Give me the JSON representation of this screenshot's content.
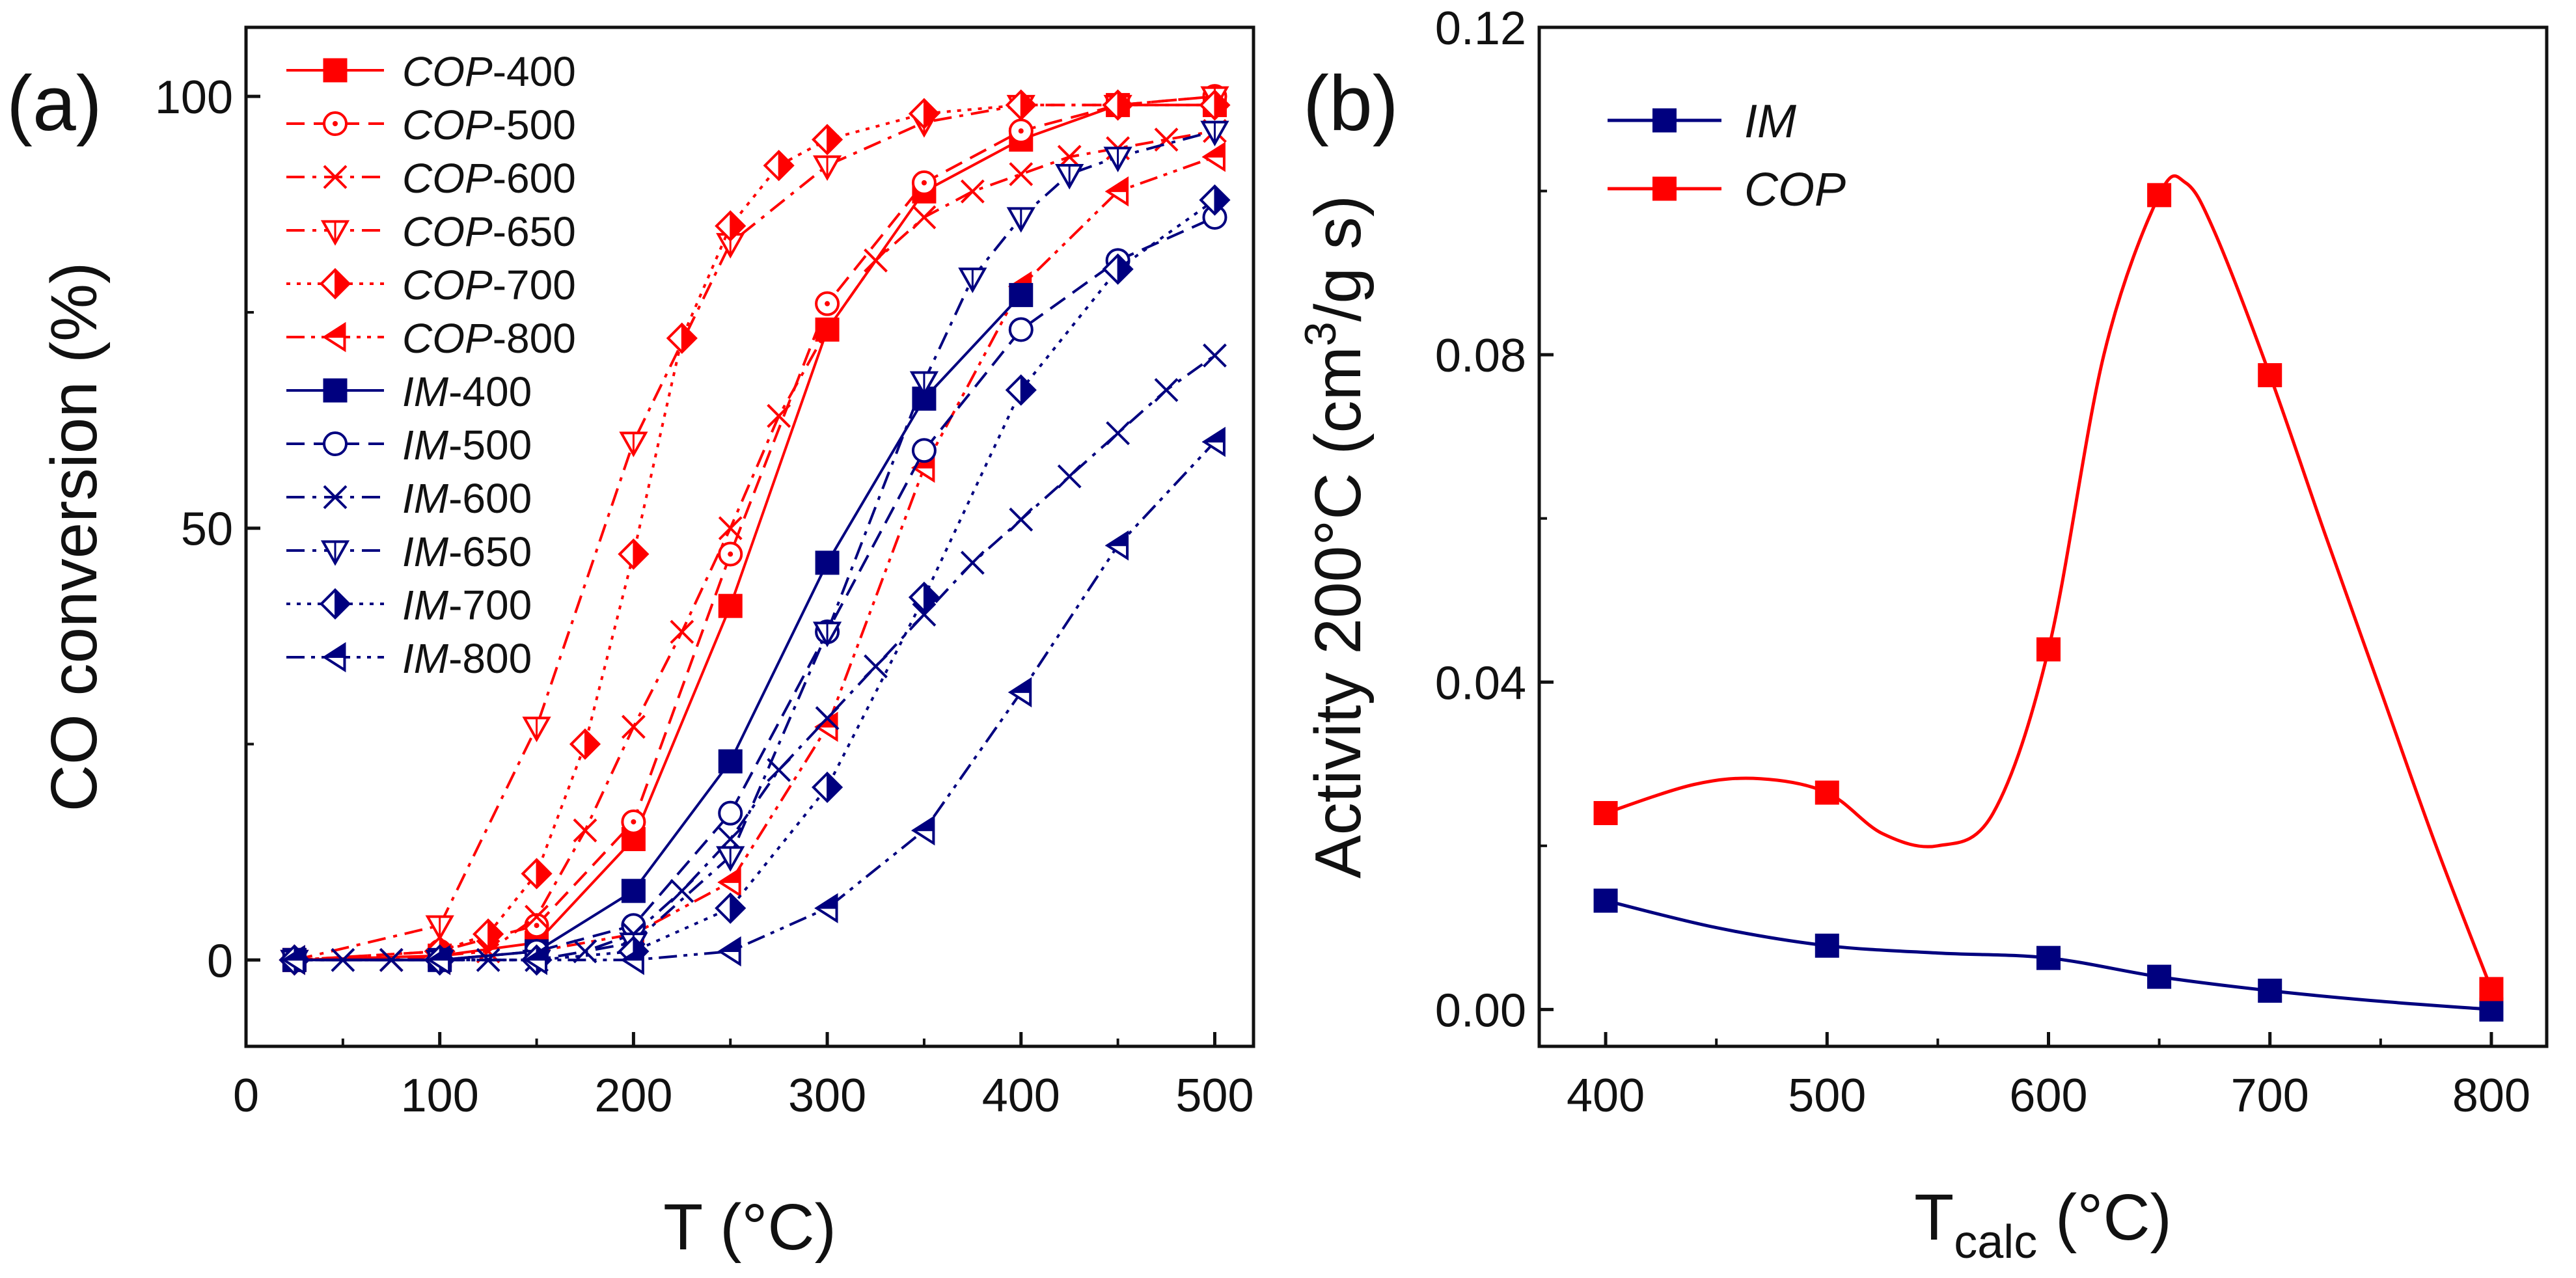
{
  "chart_data": [
    {
      "panel_label": "(a)",
      "type": "line",
      "xlabel": "T (°C)",
      "ylabel": "CO conversion (%)",
      "xlim": [
        0,
        520
      ],
      "ylim": [
        -10,
        108
      ],
      "xticks": [
        "0",
        "100",
        "200",
        "300",
        "400",
        "500"
      ],
      "yticks": [
        "0",
        "50",
        "100"
      ],
      "legend_position": "top-left",
      "series": [
        {
          "name": "COP-400",
          "prefix": "COP",
          "suffix": "-400",
          "color": "#ff0000",
          "marker": "square-filled",
          "dash": "solid",
          "x": [
            25,
            100,
            150,
            200,
            250,
            300,
            350,
            400,
            450,
            500
          ],
          "y": [
            0,
            0.5,
            2,
            14,
            41,
            73,
            89,
            95,
            99,
            99
          ]
        },
        {
          "name": "COP-500",
          "prefix": "COP",
          "suffix": "-500",
          "color": "#ff0000",
          "marker": "circle-dot",
          "dash": "dash",
          "x": [
            25,
            100,
            150,
            200,
            250,
            300,
            350,
            400,
            450,
            500
          ],
          "y": [
            0,
            1,
            4,
            16,
            47,
            76,
            90,
            96,
            99,
            100
          ]
        },
        {
          "name": "COP-600",
          "prefix": "COP",
          "suffix": "-600",
          "color": "#ff0000",
          "marker": "cross",
          "dash": "dashdot",
          "x": [
            25,
            75,
            100,
            125,
            150,
            175,
            200,
            225,
            250,
            275,
            300,
            325,
            350,
            375,
            400,
            425,
            450,
            475,
            500
          ],
          "y": [
            0,
            0,
            0.5,
            1,
            5,
            15,
            27,
            38,
            50,
            63,
            73,
            81,
            86,
            89,
            91,
            93,
            94,
            95,
            96
          ]
        },
        {
          "name": "COP-650",
          "prefix": "COP",
          "suffix": "-650",
          "color": "#ff0000",
          "marker": "triangle-down-open",
          "dash": "dashdot",
          "x": [
            25,
            100,
            150,
            200,
            250,
            300,
            350,
            400,
            450,
            500
          ],
          "y": [
            0,
            4,
            27,
            60,
            83,
            92,
            97,
            99,
            99,
            100
          ]
        },
        {
          "name": "COP-700",
          "prefix": "COP",
          "suffix": "-700",
          "color": "#ff0000",
          "marker": "diamond-half",
          "dash": "dot",
          "x": [
            25,
            100,
            125,
            150,
            175,
            200,
            225,
            250,
            275,
            300,
            350,
            400,
            450,
            500
          ],
          "y": [
            0,
            1,
            3,
            10,
            25,
            47,
            72,
            85,
            92,
            95,
            98,
            99,
            99,
            99
          ]
        },
        {
          "name": "COP-800",
          "prefix": "COP",
          "suffix": "-800",
          "color": "#ff0000",
          "marker": "triangle-left-half",
          "dash": "dashdotdot",
          "x": [
            25,
            100,
            150,
            200,
            250,
            300,
            350,
            400,
            450,
            500
          ],
          "y": [
            0,
            0,
            1,
            3,
            9,
            27,
            57,
            78,
            89,
            93
          ]
        },
        {
          "name": "IM-400",
          "prefix": "IM",
          "suffix": "-400",
          "color": "#00007f",
          "marker": "square-filled",
          "dash": "solid",
          "x": [
            25,
            100,
            150,
            200,
            250,
            300,
            350,
            400
          ],
          "y": [
            0,
            0,
            1,
            8,
            23,
            46,
            65,
            77
          ]
        },
        {
          "name": "IM-500",
          "prefix": "IM",
          "suffix": "-500",
          "color": "#00007f",
          "marker": "circle-open",
          "dash": "dash",
          "x": [
            25,
            100,
            150,
            200,
            250,
            300,
            350,
            400,
            450,
            500
          ],
          "y": [
            0,
            0,
            1,
            4,
            17,
            38,
            59,
            73,
            81,
            86
          ]
        },
        {
          "name": "IM-600",
          "prefix": "IM",
          "suffix": "-600",
          "color": "#00007f",
          "marker": "cross",
          "dash": "dashdot",
          "x": [
            25,
            50,
            75,
            100,
            125,
            150,
            175,
            200,
            225,
            250,
            275,
            300,
            325,
            350,
            375,
            400,
            425,
            450,
            475,
            500
          ],
          "y": [
            0,
            0,
            0,
            0,
            0,
            0,
            1,
            3,
            8,
            14,
            22,
            28,
            34,
            40,
            46,
            51,
            56,
            61,
            66,
            70
          ]
        },
        {
          "name": "IM-650",
          "prefix": "IM",
          "suffix": "-650",
          "color": "#00007f",
          "marker": "triangle-down-open",
          "dash": "dashdot",
          "x": [
            25,
            100,
            150,
            200,
            250,
            300,
            350,
            375,
            400,
            425,
            450,
            500
          ],
          "y": [
            0,
            0,
            0,
            2,
            12,
            38,
            67,
            79,
            86,
            91,
            93,
            96
          ]
        },
        {
          "name": "IM-700",
          "prefix": "IM",
          "suffix": "-700",
          "color": "#00007f",
          "marker": "diamond-half",
          "dash": "dot",
          "x": [
            25,
            100,
            150,
            200,
            250,
            300,
            350,
            400,
            450,
            500
          ],
          "y": [
            0,
            0,
            0,
            1,
            6,
            20,
            42,
            66,
            80,
            88
          ]
        },
        {
          "name": "IM-800",
          "prefix": "IM",
          "suffix": "-800",
          "color": "#00007f",
          "marker": "triangle-left-half",
          "dash": "dashdotdot",
          "x": [
            25,
            100,
            150,
            200,
            250,
            300,
            350,
            400,
            450,
            500
          ],
          "y": [
            0,
            0,
            0,
            0,
            1,
            6,
            15,
            31,
            48,
            60
          ]
        }
      ]
    },
    {
      "panel_label": "(b)",
      "type": "line",
      "xlabel_main": "T",
      "xlabel_sub": "calc",
      "xlabel_unit": " (°C)",
      "ylabel_pre": "Activity 200°C (cm",
      "ylabel_sup": "3",
      "ylabel_post": "/g s)",
      "xlim": [
        370,
        825
      ],
      "ylim": [
        -0.0045,
        0.12
      ],
      "xticks": [
        "400",
        "500",
        "600",
        "700",
        "800"
      ],
      "yticks": [
        "0.00",
        "0.04",
        "0.08",
        "0.12"
      ],
      "legend_position": "top-left",
      "series": [
        {
          "name": "IM",
          "color": "#00007f",
          "marker": "square-filled",
          "x": [
            400,
            500,
            600,
            650,
            700,
            800
          ],
          "y": [
            0.0133,
            0.0078,
            0.0063,
            0.004,
            0.0023,
            0.0
          ],
          "curve": [
            [
              400,
              0.0133
            ],
            [
              450,
              0.01
            ],
            [
              500,
              0.0078
            ],
            [
              550,
              0.0069
            ],
            [
              600,
              0.0063
            ],
            [
              650,
              0.004
            ],
            [
              700,
              0.0023
            ],
            [
              750,
              0.001
            ],
            [
              800,
              0.0
            ]
          ]
        },
        {
          "name": "COP",
          "color": "#ff0000",
          "marker": "square-filled",
          "x": [
            400,
            500,
            600,
            650,
            700,
            800
          ],
          "y": [
            0.024,
            0.0265,
            0.044,
            0.0995,
            0.0775,
            0.0025
          ],
          "curve": [
            [
              400,
              0.024
            ],
            [
              440,
              0.0275
            ],
            [
              470,
              0.0282
            ],
            [
              500,
              0.0265
            ],
            [
              525,
              0.0215
            ],
            [
              550,
              0.02
            ],
            [
              575,
              0.024
            ],
            [
              600,
              0.044
            ],
            [
              625,
              0.08
            ],
            [
              650,
              0.0995
            ],
            [
              662,
              0.101
            ],
            [
              675,
              0.095
            ],
            [
              700,
              0.0775
            ],
            [
              725,
              0.058
            ],
            [
              750,
              0.039
            ],
            [
              775,
              0.02
            ],
            [
              800,
              0.0025
            ]
          ]
        }
      ]
    }
  ]
}
